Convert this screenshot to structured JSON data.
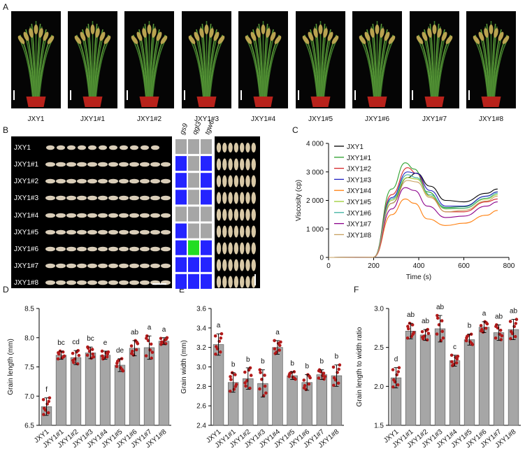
{
  "panel_letters": {
    "A": "A",
    "B": "B",
    "C": "C",
    "D": "D",
    "E": "E",
    "F": "F"
  },
  "lines": [
    "JXY1",
    "JXY1#1",
    "JXY1#2",
    "JXY1#3",
    "JXY1#4",
    "JXY1#5",
    "JXY1#6",
    "JXY1#7",
    "JXY1#8"
  ],
  "genes": [
    "gs9",
    "qgl3",
    "tgw6"
  ],
  "genotype_matrix": [
    [
      "wt",
      "wt",
      "wt"
    ],
    [
      "mut",
      "wt",
      "mut"
    ],
    [
      "mut",
      "wt",
      "mut"
    ],
    [
      "mut",
      "wt",
      "mut"
    ],
    [
      "wt",
      "wt",
      "wt"
    ],
    [
      "mut",
      "wt",
      "wt"
    ],
    [
      "mut",
      "alt",
      "mut"
    ],
    [
      "mut",
      "mut",
      "mut"
    ],
    [
      "mut",
      "mut",
      "mut"
    ]
  ],
  "matrix_colors": {
    "wt": "#a6a6a6",
    "mut": "#2424ff",
    "alt": "#22dd22"
  },
  "line_colors": [
    "#000000",
    "#2ca02c",
    "#d62728",
    "#2020c0",
    "#ff7f0e",
    "#9acd32",
    "#3cb0a0",
    "#8b008b",
    "#c8a060"
  ],
  "chart_data": [
    {
      "panel": "C",
      "type": "line",
      "xlabel": "Time (s)",
      "ylabel": "Viscosity (cp)",
      "xlim": [
        0,
        800
      ],
      "ylim": [
        0,
        4000
      ],
      "xticks": [
        0,
        200,
        400,
        600,
        800
      ],
      "yticks": [
        0,
        1000,
        2000,
        3000,
        4000
      ],
      "xtick_labels": [
        "0",
        "200",
        "400",
        "600",
        "800"
      ],
      "ytick_labels": [
        "0",
        "1 000",
        "2 000",
        "3 000",
        "4 000"
      ],
      "legend": "top-left",
      "series": [
        {
          "name": "JXY1",
          "x": [
            0,
            20,
            200,
            280,
            350,
            390,
            450,
            520,
            600,
            700,
            750
          ],
          "y": [
            0,
            0,
            10,
            1900,
            2800,
            2960,
            2500,
            2000,
            1950,
            2250,
            2400
          ]
        },
        {
          "name": "JXY1#1",
          "x": [
            0,
            20,
            200,
            280,
            340,
            380,
            440,
            520,
            600,
            700,
            750
          ],
          "y": [
            0,
            0,
            10,
            2400,
            3320,
            3100,
            2300,
            1750,
            1780,
            2150,
            2300
          ]
        },
        {
          "name": "JXY1#2",
          "x": [
            0,
            20,
            200,
            280,
            350,
            390,
            450,
            520,
            600,
            700,
            750
          ],
          "y": [
            0,
            0,
            10,
            2200,
            3150,
            2950,
            2150,
            1600,
            1600,
            1950,
            2050
          ]
        },
        {
          "name": "JXY1#3",
          "x": [
            0,
            20,
            200,
            280,
            350,
            390,
            450,
            520,
            600,
            700,
            750
          ],
          "y": [
            0,
            0,
            10,
            2100,
            3000,
            2950,
            2350,
            1800,
            1800,
            2150,
            2300
          ]
        },
        {
          "name": "JXY1#4",
          "x": [
            0,
            20,
            200,
            280,
            340,
            380,
            440,
            520,
            600,
            700,
            750
          ],
          "y": [
            0,
            0,
            10,
            1500,
            2050,
            1900,
            1350,
            1120,
            1200,
            1480,
            1650
          ]
        },
        {
          "name": "JXY1#5",
          "x": [
            0,
            20,
            200,
            280,
            350,
            390,
            450,
            520,
            600,
            700,
            750
          ],
          "y": [
            0,
            0,
            10,
            2000,
            2800,
            2750,
            2150,
            1700,
            1720,
            2050,
            2200
          ]
        },
        {
          "name": "JXY1#6",
          "x": [
            0,
            20,
            200,
            280,
            350,
            390,
            450,
            520,
            600,
            700,
            750
          ],
          "y": [
            0,
            0,
            10,
            2050,
            2900,
            2800,
            2200,
            1720,
            1730,
            2080,
            2250
          ]
        },
        {
          "name": "JXY1#7",
          "x": [
            0,
            20,
            200,
            280,
            340,
            380,
            440,
            520,
            600,
            700,
            750
          ],
          "y": [
            0,
            0,
            10,
            1700,
            2450,
            2350,
            1800,
            1400,
            1450,
            1800,
            1950
          ]
        },
        {
          "name": "JXY1#8",
          "x": [
            0,
            20,
            200,
            280,
            350,
            390,
            450,
            520,
            600,
            700,
            750
          ],
          "y": [
            0,
            0,
            10,
            1900,
            2700,
            2650,
            2100,
            1600,
            1650,
            1980,
            2150
          ]
        }
      ]
    },
    {
      "panel": "D",
      "type": "bar",
      "ylabel": "Grain length (mm)",
      "ylim": [
        6.5,
        8.5
      ],
      "yticks": [
        6.5,
        7.0,
        7.5,
        8.0,
        8.5
      ],
      "ytick_labels": [
        "6.5",
        "7.0",
        "7.5",
        "8.0",
        "8.5"
      ],
      "categories": [
        "JXY1",
        "JXY1#1",
        "JXY1#2",
        "JXY1#3",
        "JXY1#4",
        "JXY1#5",
        "JXY1#6",
        "JXY1#7",
        "JXY1#8"
      ],
      "values": [
        6.82,
        7.7,
        7.66,
        7.74,
        7.7,
        7.53,
        7.82,
        7.83,
        7.94
      ],
      "errors": [
        0.15,
        0.07,
        0.12,
        0.1,
        0.07,
        0.11,
        0.13,
        0.2,
        0.06
      ],
      "letters": [
        "f",
        "bc",
        "cd",
        "bc",
        "e",
        "de",
        "ab",
        "a",
        "a"
      ]
    },
    {
      "panel": "E",
      "type": "bar",
      "ylabel": "Grain width (mm)",
      "ylim": [
        2.4,
        3.6
      ],
      "yticks": [
        2.4,
        2.6,
        2.8,
        3.0,
        3.2,
        3.4,
        3.6
      ],
      "ytick_labels": [
        "2.4",
        "2.6",
        "2.8",
        "3.0",
        "3.2",
        "3.4",
        "3.6"
      ],
      "categories": [
        "JXY1",
        "JXY1#1",
        "JXY1#2",
        "JXY1#3",
        "JXY1#4",
        "JXY1#5",
        "JXY1#6",
        "JXY1#7",
        "JXY1#8"
      ],
      "values": [
        3.23,
        2.84,
        2.88,
        2.83,
        3.2,
        2.91,
        2.84,
        2.92,
        2.91
      ],
      "errors": [
        0.11,
        0.1,
        0.11,
        0.14,
        0.07,
        0.04,
        0.08,
        0.05,
        0.11
      ],
      "letters": [
        "a",
        "b",
        "b",
        "b",
        "a",
        "b",
        "b",
        "b",
        "b"
      ]
    },
    {
      "panel": "F",
      "type": "bar",
      "ylabel": "Grain length to width ratio",
      "ylim": [
        1.5,
        3.0
      ],
      "yticks": [
        1.5,
        2.0,
        2.5,
        3.0
      ],
      "ytick_labels": [
        "1.5",
        "2.0",
        "2.5",
        "3.0"
      ],
      "categories": [
        "JXY1",
        "JXY1#1",
        "JXY1#2",
        "JXY1#3",
        "JXY1#4",
        "JXY1#5",
        "JXY1#6",
        "JXY1#7",
        "JXY1#8"
      ],
      "values": [
        2.11,
        2.71,
        2.66,
        2.74,
        2.33,
        2.6,
        2.76,
        2.69,
        2.73
      ],
      "errors": [
        0.13,
        0.1,
        0.07,
        0.17,
        0.07,
        0.07,
        0.07,
        0.1,
        0.13
      ],
      "letters": [
        "d",
        "ab",
        "ab",
        "ab",
        "c",
        "b",
        "a",
        "ab",
        "ab"
      ]
    }
  ]
}
